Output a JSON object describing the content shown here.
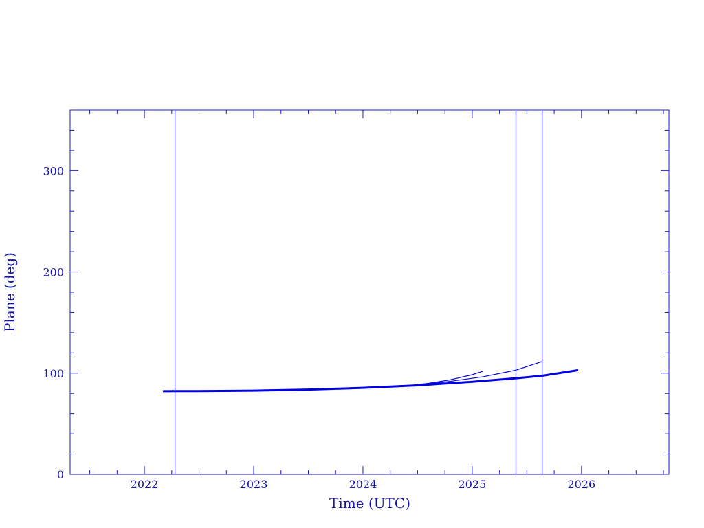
{
  "chart_data": {
    "type": "line",
    "xlabel": "Time (UTC)",
    "ylabel": "Plane (deg)",
    "xlim": [
      2021.32,
      2026.8
    ],
    "ylim": [
      0,
      360
    ],
    "x_ticks": [
      2022,
      2023,
      2024,
      2025,
      2026
    ],
    "x_minor_step": 0.25,
    "y_ticks": [
      0,
      100,
      200,
      300
    ],
    "y_minor_step": 20,
    "grid": false,
    "vertical_lines": [
      2022.28,
      2025.4,
      2025.64
    ],
    "color": "#0000e0",
    "axis_color": "#1a1acc",
    "series": [
      {
        "x": [
          2022.17,
          2022.5,
          2023.0,
          2023.5,
          2024.0,
          2024.5,
          2025.0,
          2025.4,
          2025.64,
          2025.97
        ],
        "y": [
          82.3,
          82.4,
          82.8,
          83.8,
          85.5,
          88.0,
          91.5,
          95.0,
          97.5,
          103.0
        ],
        "weight": "thick"
      },
      {
        "x": [
          2024.4,
          2024.6,
          2024.8,
          2025.0,
          2025.1
        ],
        "y": [
          87.5,
          90.0,
          93.5,
          98.5,
          102.0
        ],
        "weight": "thin"
      },
      {
        "x": [
          2024.5,
          2024.8,
          2025.1,
          2025.4,
          2025.64
        ],
        "y": [
          88.3,
          92.0,
          96.5,
          103.0,
          111.5
        ],
        "weight": "thin"
      }
    ]
  }
}
